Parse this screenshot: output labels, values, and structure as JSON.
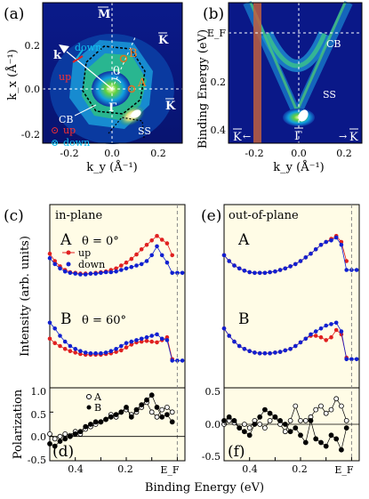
{
  "panels": {
    "a": "(a)",
    "b": "(b)",
    "c": "(c)",
    "d": "(d)",
    "e": "(e)",
    "f": "(f)"
  },
  "panel_a": {
    "xlabel": "k_y (Å⁻¹)",
    "ylabel": "k_x (Å⁻¹)",
    "xticks": [
      "-0.2",
      "0.0",
      "0.2"
    ],
    "yticks": [
      "0.2",
      "0.0",
      "-0.2"
    ],
    "labels": {
      "M": "M",
      "K_top": "K",
      "K_right": "K",
      "Gamma": "Γ",
      "A": "A",
      "B": "B",
      "theta": "θ",
      "k": "k",
      "down": "down",
      "up": "up",
      "CB": "CB",
      "SS": "SS"
    },
    "legend": [
      {
        "symbol": "⊙",
        "label": "up",
        "color": "#e02020"
      },
      {
        "symbol": "⊗",
        "label": "down",
        "color": "#10a0d0"
      }
    ]
  },
  "panel_b": {
    "xlabel": "k_y (Å⁻¹)",
    "ylabel": "Binding Energy (eV)",
    "xticks": [
      "-0.2",
      "0.0",
      "0.2"
    ],
    "yticks": [
      "E_F",
      "0.2",
      "0.4"
    ],
    "labels": {
      "CB": "CB",
      "SS": "SS",
      "K_left": "K",
      "K_right": "K",
      "Gamma": "Γ"
    }
  },
  "panel_c": {
    "title": "in-plane",
    "curveA": {
      "label": "A",
      "theta": "θ = 0°"
    },
    "curveB": {
      "label": "B",
      "theta": "θ = 60°"
    },
    "legend": [
      {
        "label": "up",
        "color": "#e02020"
      },
      {
        "label": "down",
        "color": "#1020d0"
      }
    ]
  },
  "panel_e": {
    "title": "out-of-plane",
    "curveA": {
      "label": "A"
    },
    "curveB": {
      "label": "B"
    }
  },
  "shared": {
    "ylabel_intensity": "Intensity (arb. units)",
    "ylabel_polarization": "Polarization",
    "xlabel": "Binding Energy (eV)",
    "xticks": [
      "0.4",
      "0.2",
      "E_F"
    ]
  },
  "panel_d": {
    "legend": [
      {
        "label": "A",
        "symbol": "○"
      },
      {
        "label": "B",
        "symbol": "●"
      }
    ],
    "yticks": [
      "1.0",
      "0.5",
      "0.0",
      "-0.5"
    ]
  },
  "panel_f": {
    "yticks": [
      "0.5",
      "0.0",
      "-0.5"
    ]
  },
  "chart_data": [
    {
      "id": "c-A",
      "type": "line",
      "x_unit": "Binding Energy (eV)",
      "x_range": [
        0.5,
        -0.03
      ],
      "series": [
        {
          "name": "up",
          "color": "#e02020",
          "x": [
            0.5,
            0.48,
            0.46,
            0.44,
            0.42,
            0.4,
            0.38,
            0.36,
            0.34,
            0.32,
            0.3,
            0.28,
            0.26,
            0.24,
            0.22,
            0.2,
            0.18,
            0.16,
            0.14,
            0.12,
            0.1,
            0.08,
            0.06,
            0.04,
            0.02
          ],
          "y": [
            0.72,
            0.62,
            0.55,
            0.5,
            0.47,
            0.46,
            0.45,
            0.45,
            0.45,
            0.46,
            0.47,
            0.48,
            0.5,
            0.52,
            0.56,
            0.6,
            0.65,
            0.71,
            0.78,
            0.84,
            0.9,
            0.96,
            0.91,
            0.86,
            0.7
          ]
        },
        {
          "name": "down",
          "color": "#1020d0",
          "x": [
            0.5,
            0.48,
            0.46,
            0.44,
            0.42,
            0.4,
            0.38,
            0.36,
            0.34,
            0.32,
            0.3,
            0.28,
            0.26,
            0.24,
            0.22,
            0.2,
            0.18,
            0.16,
            0.14,
            0.12,
            0.1,
            0.08,
            0.06,
            0.04,
            0.02,
            0.0,
            -0.02
          ],
          "y": [
            0.66,
            0.58,
            0.52,
            0.48,
            0.46,
            0.45,
            0.44,
            0.44,
            0.45,
            0.45,
            0.46,
            0.47,
            0.47,
            0.48,
            0.5,
            0.52,
            0.54,
            0.56,
            0.58,
            0.62,
            0.7,
            0.82,
            0.7,
            0.6,
            0.46,
            0.46,
            0.46
          ]
        }
      ]
    },
    {
      "id": "c-B",
      "type": "line",
      "series": [
        {
          "name": "up",
          "color": "#e02020",
          "x": [
            0.5,
            0.48,
            0.46,
            0.44,
            0.42,
            0.4,
            0.38,
            0.36,
            0.34,
            0.32,
            0.3,
            0.28,
            0.26,
            0.24,
            0.22,
            0.2,
            0.18,
            0.16,
            0.14,
            0.12,
            0.1,
            0.08,
            0.06,
            0.04,
            0.02
          ],
          "y": [
            0.6,
            0.54,
            0.5,
            0.46,
            0.43,
            0.41,
            0.39,
            0.38,
            0.38,
            0.38,
            0.38,
            0.39,
            0.4,
            0.42,
            0.44,
            0.48,
            0.52,
            0.55,
            0.56,
            0.57,
            0.56,
            0.55,
            0.58,
            0.62,
            0.32
          ]
        },
        {
          "name": "down",
          "color": "#1020d0",
          "x": [
            0.5,
            0.48,
            0.46,
            0.44,
            0.42,
            0.4,
            0.38,
            0.36,
            0.34,
            0.32,
            0.3,
            0.28,
            0.26,
            0.24,
            0.22,
            0.2,
            0.18,
            0.16,
            0.14,
            0.12,
            0.1,
            0.08,
            0.06,
            0.04,
            0.02,
            0.0,
            -0.02
          ],
          "y": [
            0.82,
            0.74,
            0.64,
            0.56,
            0.5,
            0.46,
            0.43,
            0.41,
            0.4,
            0.4,
            0.4,
            0.41,
            0.43,
            0.46,
            0.5,
            0.54,
            0.56,
            0.58,
            0.6,
            0.62,
            0.64,
            0.66,
            0.6,
            0.58,
            0.3,
            0.3,
            0.3
          ]
        }
      ]
    },
    {
      "id": "e-A",
      "type": "line",
      "series": [
        {
          "name": "up",
          "color": "#e02020",
          "x": [
            0.5,
            0.48,
            0.46,
            0.44,
            0.42,
            0.4,
            0.38,
            0.36,
            0.34,
            0.32,
            0.3,
            0.28,
            0.26,
            0.24,
            0.22,
            0.2,
            0.18,
            0.16,
            0.14,
            0.12,
            0.1,
            0.08,
            0.06,
            0.04,
            0.02
          ],
          "y": [
            0.7,
            0.62,
            0.56,
            0.52,
            0.49,
            0.47,
            0.46,
            0.46,
            0.46,
            0.47,
            0.48,
            0.5,
            0.52,
            0.55,
            0.58,
            0.62,
            0.67,
            0.72,
            0.78,
            0.84,
            0.88,
            0.92,
            0.96,
            0.88,
            0.62
          ]
        },
        {
          "name": "down",
          "color": "#1020d0",
          "x": [
            0.5,
            0.48,
            0.46,
            0.44,
            0.42,
            0.4,
            0.38,
            0.36,
            0.34,
            0.32,
            0.3,
            0.28,
            0.26,
            0.24,
            0.22,
            0.2,
            0.18,
            0.16,
            0.14,
            0.12,
            0.1,
            0.08,
            0.06,
            0.04,
            0.02,
            0.0,
            -0.02
          ],
          "y": [
            0.7,
            0.62,
            0.56,
            0.52,
            0.49,
            0.47,
            0.46,
            0.46,
            0.46,
            0.47,
            0.48,
            0.5,
            0.52,
            0.55,
            0.58,
            0.62,
            0.67,
            0.72,
            0.78,
            0.84,
            0.88,
            0.9,
            0.94,
            0.84,
            0.5,
            0.5,
            0.5
          ]
        }
      ]
    },
    {
      "id": "e-B",
      "type": "line",
      "series": [
        {
          "name": "up",
          "color": "#e02020",
          "x": [
            0.5,
            0.48,
            0.46,
            0.44,
            0.42,
            0.4,
            0.38,
            0.36,
            0.34,
            0.32,
            0.3,
            0.28,
            0.26,
            0.24,
            0.22,
            0.2,
            0.18,
            0.16,
            0.14,
            0.12,
            0.1,
            0.08,
            0.06,
            0.04,
            0.02
          ],
          "y": [
            0.74,
            0.64,
            0.56,
            0.5,
            0.46,
            0.43,
            0.41,
            0.4,
            0.4,
            0.4,
            0.41,
            0.42,
            0.44,
            0.46,
            0.5,
            0.55,
            0.6,
            0.64,
            0.64,
            0.62,
            0.58,
            0.62,
            0.72,
            0.66,
            0.34
          ]
        },
        {
          "name": "down",
          "color": "#1020d0",
          "x": [
            0.5,
            0.48,
            0.46,
            0.44,
            0.42,
            0.4,
            0.38,
            0.36,
            0.34,
            0.32,
            0.3,
            0.28,
            0.26,
            0.24,
            0.22,
            0.2,
            0.18,
            0.16,
            0.14,
            0.12,
            0.1,
            0.08,
            0.06,
            0.04,
            0.02,
            0.0,
            -0.02
          ],
          "y": [
            0.74,
            0.64,
            0.56,
            0.5,
            0.46,
            0.43,
            0.41,
            0.4,
            0.4,
            0.4,
            0.41,
            0.42,
            0.44,
            0.46,
            0.5,
            0.55,
            0.6,
            0.66,
            0.7,
            0.74,
            0.78,
            0.8,
            0.82,
            0.7,
            0.32,
            0.32,
            0.32
          ]
        }
      ]
    },
    {
      "id": "d",
      "type": "scatter",
      "ylim": [
        -0.5,
        1.0
      ],
      "series": [
        {
          "name": "A",
          "filled": false,
          "x": [
            0.5,
            0.48,
            0.46,
            0.44,
            0.42,
            0.4,
            0.38,
            0.36,
            0.34,
            0.32,
            0.3,
            0.28,
            0.26,
            0.24,
            0.22,
            0.2,
            0.18,
            0.16,
            0.14,
            0.12,
            0.1,
            0.08,
            0.06,
            0.04,
            0.02
          ],
          "y": [
            0.05,
            -0.05,
            0.0,
            0.05,
            0.02,
            0.1,
            0.05,
            0.15,
            0.2,
            0.25,
            0.3,
            0.35,
            0.45,
            0.4,
            0.5,
            0.55,
            0.45,
            0.5,
            0.6,
            0.7,
            0.5,
            0.4,
            0.55,
            0.6,
            0.5
          ]
        },
        {
          "name": "B",
          "filled": true,
          "x": [
            0.5,
            0.48,
            0.46,
            0.44,
            0.42,
            0.4,
            0.38,
            0.36,
            0.34,
            0.32,
            0.3,
            0.28,
            0.26,
            0.24,
            0.22,
            0.2,
            0.18,
            0.16,
            0.14,
            0.12,
            0.1,
            0.08,
            0.06,
            0.04,
            0.02
          ],
          "y": [
            -0.15,
            -0.2,
            -0.1,
            -0.05,
            0.0,
            0.05,
            0.1,
            0.2,
            0.25,
            0.3,
            0.3,
            0.35,
            0.4,
            0.45,
            0.5,
            0.6,
            0.4,
            0.55,
            0.65,
            0.75,
            0.85,
            0.6,
            0.4,
            0.45,
            0.3
          ]
        }
      ]
    },
    {
      "id": "f",
      "type": "scatter",
      "ylim": [
        -0.5,
        0.5
      ],
      "series": [
        {
          "name": "A",
          "filled": false,
          "x": [
            0.5,
            0.48,
            0.46,
            0.44,
            0.42,
            0.4,
            0.38,
            0.36,
            0.34,
            0.32,
            0.3,
            0.28,
            0.26,
            0.24,
            0.22,
            0.2,
            0.18,
            0.16,
            0.14,
            0.12,
            0.1,
            0.08,
            0.06,
            0.04,
            0.02
          ],
          "y": [
            0.0,
            0.05,
            0.02,
            -0.05,
            0.0,
            -0.05,
            0.05,
            0.0,
            -0.05,
            0.05,
            0.1,
            0.0,
            -0.1,
            0.05,
            0.25,
            0.05,
            0.05,
            0.1,
            0.2,
            0.25,
            0.15,
            0.2,
            0.35,
            0.25,
            0.05
          ]
        },
        {
          "name": "B",
          "filled": true,
          "x": [
            0.5,
            0.48,
            0.46,
            0.44,
            0.42,
            0.4,
            0.38,
            0.36,
            0.34,
            0.32,
            0.3,
            0.28,
            0.26,
            0.24,
            0.22,
            0.2,
            0.18,
            0.16,
            0.14,
            0.12,
            0.1,
            0.08,
            0.06,
            0.04,
            0.02
          ],
          "y": [
            0.05,
            0.1,
            0.05,
            -0.05,
            -0.1,
            -0.15,
            0.0,
            0.1,
            0.2,
            0.15,
            0.1,
            0.05,
            0.0,
            -0.1,
            -0.05,
            -0.15,
            -0.25,
            0.05,
            -0.2,
            -0.25,
            -0.3,
            -0.15,
            -0.2,
            -0.35,
            -0.05
          ]
        }
      ]
    }
  ]
}
